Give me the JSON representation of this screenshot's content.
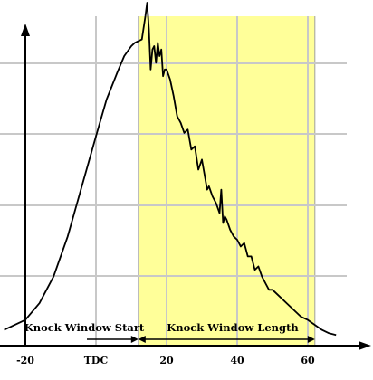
{
  "chart_data": {
    "type": "line",
    "title": "",
    "xlabel": "",
    "ylabel": "",
    "xlim": [
      -26,
      70
    ],
    "ylim": [
      0,
      1
    ],
    "grid": true,
    "x_ticks": [
      {
        "value": -20,
        "label": "-20"
      },
      {
        "value": 0,
        "label": "TDC"
      },
      {
        "value": 20,
        "label": "20"
      },
      {
        "value": 40,
        "label": "40"
      },
      {
        "value": 60,
        "label": "60"
      }
    ],
    "window": {
      "start": 12,
      "end": 62,
      "color": "#ffff99",
      "start_label": "Knock Window Start",
      "length_label": "Knock Window Length"
    },
    "series": [
      {
        "color": "#000000",
        "x": [
          -26,
          -20,
          -16,
          -12,
          -8,
          -4,
          0,
          3,
          6,
          8,
          10,
          11,
          12,
          13,
          14,
          14.5,
          15,
          15.5,
          16,
          16.5,
          17,
          17.5,
          18,
          18.5,
          19,
          19.5,
          20,
          21,
          22,
          23,
          24,
          25,
          26,
          27,
          28,
          29,
          30,
          31,
          31.5,
          32,
          33,
          34,
          35,
          35.5,
          36,
          36.5,
          37,
          38,
          39,
          40,
          41,
          42,
          43,
          44,
          45,
          46,
          47,
          48,
          49,
          50,
          52,
          54,
          56,
          58,
          60,
          62,
          64,
          66,
          68
        ],
        "y": [
          0.02,
          0.05,
          0.1,
          0.18,
          0.3,
          0.45,
          0.6,
          0.71,
          0.79,
          0.84,
          0.87,
          0.88,
          0.885,
          0.89,
          0.96,
          1.0,
          0.92,
          0.8,
          0.86,
          0.87,
          0.82,
          0.88,
          0.84,
          0.86,
          0.78,
          0.8,
          0.8,
          0.77,
          0.72,
          0.66,
          0.64,
          0.61,
          0.62,
          0.56,
          0.57,
          0.5,
          0.53,
          0.47,
          0.44,
          0.45,
          0.42,
          0.4,
          0.37,
          0.44,
          0.34,
          0.36,
          0.35,
          0.32,
          0.3,
          0.29,
          0.27,
          0.28,
          0.24,
          0.24,
          0.2,
          0.21,
          0.18,
          0.16,
          0.14,
          0.14,
          0.12,
          0.1,
          0.08,
          0.06,
          0.05,
          0.035,
          0.02,
          0.01,
          0.005
        ]
      }
    ]
  }
}
